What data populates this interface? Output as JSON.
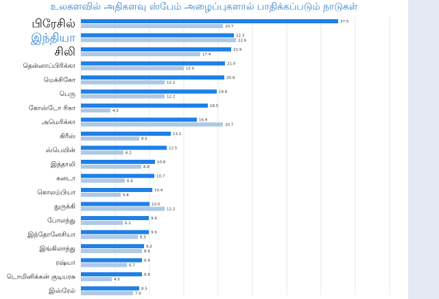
{
  "chart_data": {
    "type": "bar",
    "title": "உலகளவில் அதிகளவு ஸ்பேம் அழைப்புகளால் பாதிக்கப்படும் நாடுகள்",
    "categories": [
      "பிரேசில்",
      "இந்தியா",
      "சிலி",
      "தென்னாப்பிரிக்கா",
      "மெக்சிகோ",
      "பெரு",
      "கோஸ்டோ ரிகா",
      "அமெரிக்கா",
      "கிரீஸ்",
      "ஸ்பெயின்",
      "இத்தாலி",
      "கனடா",
      "கொலம்பியா",
      "துருக்கி",
      "போலந்து",
      "இந்தோனேசியா",
      "இங்கிலாந்து",
      "ரஷ்யா",
      "டொமினிக்கன் குடியரசு",
      "இஸ்ரேல்"
    ],
    "series": [
      {
        "values": [
          37.5,
          22.3,
          21.9,
          21.0,
          20.9,
          19.8,
          18.5,
          16.9,
          13.1,
          12.5,
          10.8,
          10.7,
          10.4,
          10.0,
          9.9,
          9.9,
          9.2,
          8.9,
          8.9,
          8.5
        ]
      },
      {
        "values": [
          20.7,
          22.6,
          17.4,
          15.0,
          12.2,
          12.2,
          4.3,
          20.7,
          8.5,
          6.2,
          8.8,
          6.4,
          5.8,
          12.2,
          6.1,
          8.3,
          8.9,
          6.7,
          4.5,
          7.6
        ]
      }
    ],
    "xlim": [
      0,
      45
    ],
    "grid": true,
    "legend": "none",
    "colors": {
      "series1": "#1f80e8",
      "series2": "#aec8e6",
      "grid": "#e3e8ef",
      "label": "#222222",
      "title": "#2f7fd0",
      "highlight": "#2f7fd0"
    },
    "emphasized_labels": [
      {
        "index": 0,
        "color": "#111111"
      },
      {
        "index": 1,
        "color": "#2f7fd0"
      },
      {
        "index": 2,
        "color": "#111111"
      }
    ]
  }
}
